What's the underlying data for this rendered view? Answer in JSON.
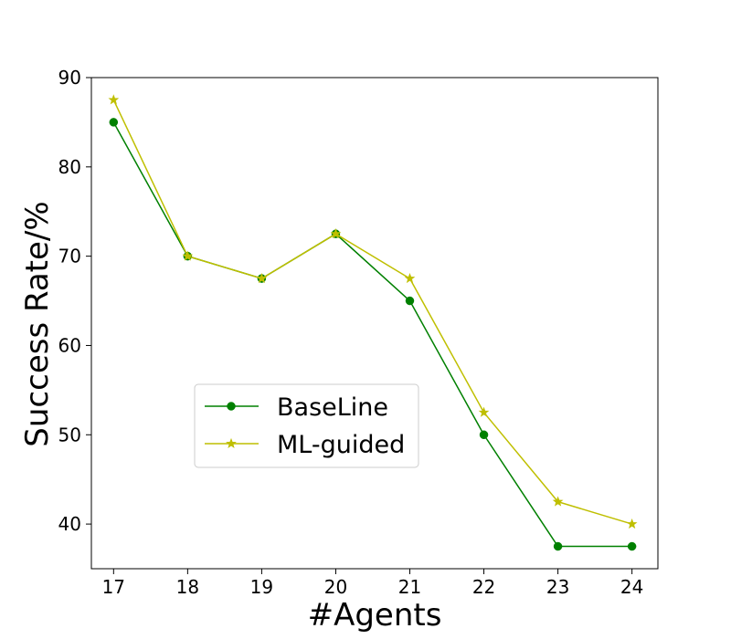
{
  "chart_data": {
    "type": "line",
    "title": "",
    "xlabel": "#Agents",
    "ylabel": "Success Rate/%",
    "x": [
      17,
      18,
      19,
      20,
      21,
      22,
      23,
      24
    ],
    "xlim": [
      16.7,
      24.35
    ],
    "ylim": [
      35,
      90
    ],
    "xticks": [
      17,
      18,
      19,
      20,
      21,
      22,
      23,
      24
    ],
    "yticks": [
      40,
      50,
      60,
      70,
      80,
      90
    ],
    "grid": false,
    "legend_position": "lower-left",
    "series": [
      {
        "name": "BaseLine",
        "values": [
          85,
          70,
          67.5,
          72.5,
          65,
          50,
          37.5,
          37.5
        ],
        "color": "#008000",
        "marker": "circle"
      },
      {
        "name": "ML-guided",
        "values": [
          87.5,
          70,
          67.5,
          72.5,
          67.5,
          52.5,
          42.5,
          40
        ],
        "color": "#bfbf00",
        "marker": "star"
      }
    ]
  }
}
